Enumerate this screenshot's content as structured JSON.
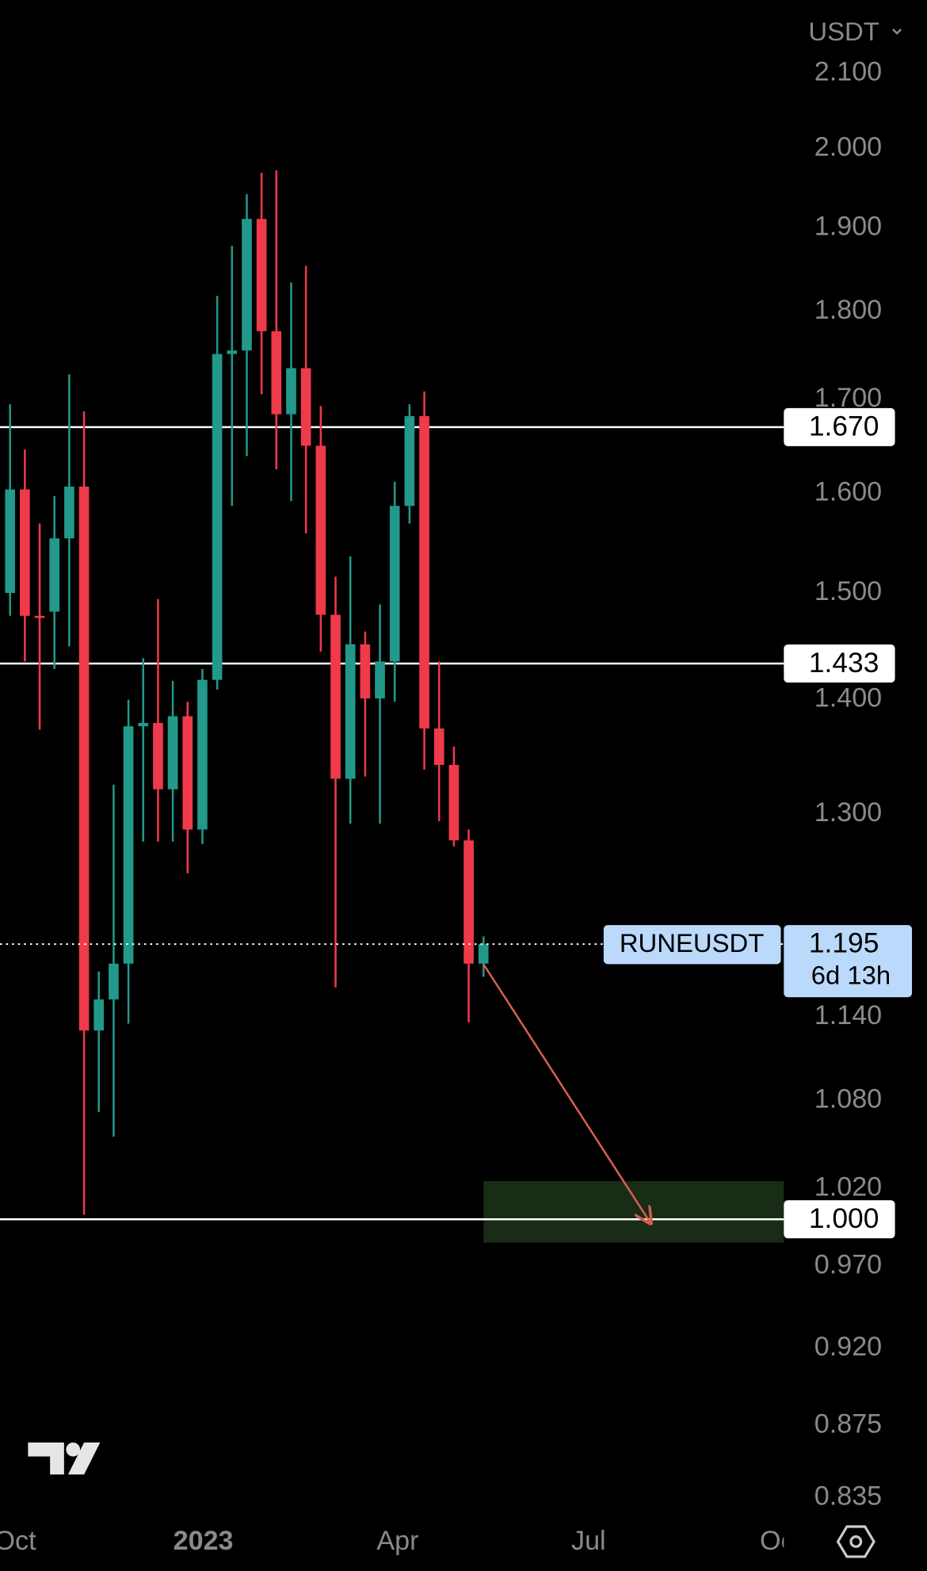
{
  "chart_data": {
    "type": "candlestick",
    "currency": "USDT",
    "symbol": "RUNEUSDT",
    "countdown": "6d 13h",
    "up_color": "#22998a",
    "down_color": "#ef3a4a",
    "log_scale": true,
    "x": [
      0,
      1,
      2,
      3,
      4,
      5,
      6,
      7,
      8,
      9,
      10,
      11,
      12,
      13,
      14,
      15,
      16,
      17,
      18,
      19,
      20,
      21,
      22,
      23,
      24,
      25,
      26,
      27,
      28,
      29,
      30,
      31,
      32
    ],
    "open": [
      1.5,
      1.604,
      1.478,
      1.482,
      1.554,
      1.607,
      1.13,
      1.153,
      1.18,
      1.376,
      1.379,
      1.321,
      1.385,
      1.287,
      1.418,
      1.751,
      1.755,
      1.911,
      1.777,
      1.684,
      1.735,
      1.65,
      1.479,
      1.33,
      1.451,
      1.401,
      1.435,
      1.587,
      1.682,
      1.374,
      1.342,
      1.278,
      1.18
    ],
    "high": [
      1.695,
      1.646,
      1.569,
      1.597,
      1.728,
      1.687,
      1.174,
      1.325,
      1.4,
      1.438,
      1.494,
      1.417,
      1.398,
      1.428,
      1.818,
      1.878,
      1.942,
      1.969,
      1.972,
      1.834,
      1.854,
      1.693,
      1.516,
      1.536,
      1.463,
      1.489,
      1.612,
      1.695,
      1.709,
      1.435,
      1.358,
      1.287,
      1.201
    ],
    "low": [
      1.478,
      1.435,
      1.373,
      1.428,
      1.449,
      1.003,
      1.072,
      1.055,
      1.135,
      1.277,
      1.277,
      1.277,
      1.251,
      1.275,
      1.409,
      1.587,
      1.639,
      1.706,
      1.625,
      1.592,
      1.559,
      1.444,
      1.162,
      1.292,
      1.332,
      1.292,
      1.398,
      1.569,
      1.338,
      1.294,
      1.273,
      1.136,
      1.17
    ],
    "close": [
      1.604,
      1.478,
      1.476,
      1.554,
      1.607,
      1.13,
      1.153,
      1.18,
      1.376,
      1.379,
      1.321,
      1.385,
      1.287,
      1.418,
      1.751,
      1.755,
      1.911,
      1.777,
      1.684,
      1.735,
      1.65,
      1.479,
      1.33,
      1.451,
      1.401,
      1.435,
      1.587,
      1.682,
      1.374,
      1.342,
      1.278,
      1.18,
      1.195
    ],
    "xlim": [
      -0.68,
      52.3
    ],
    "xticks": [
      {
        "value": 0.34,
        "label": "Oct"
      },
      {
        "value": 13.06,
        "label": "2023"
      },
      {
        "value": 26.2,
        "label": "Apr"
      },
      {
        "value": 39.1,
        "label": "Jul"
      },
      {
        "value": 52.1,
        "label": "Oct"
      }
    ],
    "ylim": [
      0.826,
      2.2015
    ],
    "yticks": [
      {
        "value": 2.1,
        "label": "2.100"
      },
      {
        "value": 2.0,
        "label": "2.000"
      },
      {
        "value": 1.9,
        "label": "1.900"
      },
      {
        "value": 1.8,
        "label": "1.800"
      },
      {
        "value": 1.7,
        "label": "1.700"
      },
      {
        "value": 1.6,
        "label": "1.600"
      },
      {
        "value": 1.5,
        "label": "1.500"
      },
      {
        "value": 1.4,
        "label": "1.400"
      },
      {
        "value": 1.3,
        "label": "1.300"
      },
      {
        "value": 1.14,
        "label": "1.140"
      },
      {
        "value": 1.08,
        "label": "1.080"
      },
      {
        "value": 1.02,
        "label": "1.020"
      },
      {
        "value": 0.97,
        "label": "0.970"
      },
      {
        "value": 0.92,
        "label": "0.920"
      },
      {
        "value": 0.875,
        "label": "0.875"
      },
      {
        "value": 0.835,
        "label": "0.835"
      }
    ],
    "levels": [
      {
        "value": 1.67,
        "label": "1.670"
      },
      {
        "value": 1.433,
        "label": "1.433"
      },
      {
        "value": 1.0,
        "label": "1.000"
      }
    ],
    "zone": [
      0.985,
      1.025
    ]
  }
}
